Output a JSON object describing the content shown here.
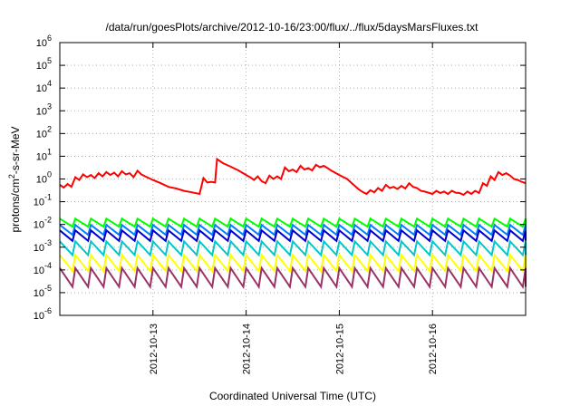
{
  "chart_data": {
    "type": "line",
    "title": "/data/run/goesPlots/archive/2012-10-16/23:00/flux/../flux/5daysMarsFluxes.txt",
    "xlabel": "Coordinated Universal Time (UTC)",
    "ylabel": "protons/cm²-s-sr-MeV",
    "ylabel_parts": {
      "pre": "protons/cm",
      "sup": "2",
      "post": "-s-sr-MeV"
    },
    "yscale": "log",
    "ylim": [
      1e-06,
      1000000.0
    ],
    "y_ticks": [
      {
        "base": "10",
        "exp": "6",
        "value": 1000000.0
      },
      {
        "base": "10",
        "exp": "5",
        "value": 100000.0
      },
      {
        "base": "10",
        "exp": "4",
        "value": 10000.0
      },
      {
        "base": "10",
        "exp": "3",
        "value": 1000.0
      },
      {
        "base": "10",
        "exp": "2",
        "value": 100.0
      },
      {
        "base": "10",
        "exp": "1",
        "value": 10.0
      },
      {
        "base": "10",
        "exp": "0",
        "value": 1.0
      },
      {
        "base": "10",
        "exp": "-1",
        "value": 0.1
      },
      {
        "base": "10",
        "exp": "-2",
        "value": 0.01
      },
      {
        "base": "10",
        "exp": "-3",
        "value": 0.001
      },
      {
        "base": "10",
        "exp": "-4",
        "value": 0.0001
      },
      {
        "base": "10",
        "exp": "-5",
        "value": 1e-05
      },
      {
        "base": "10",
        "exp": "-6",
        "value": 1e-06
      }
    ],
    "xlim": [
      "2012-10-12T00:00",
      "2012-10-17T00:00"
    ],
    "x_ticks": [
      "2012-10-13",
      "2012-10-14",
      "2012-10-15",
      "2012-10-16"
    ],
    "grid": true,
    "series": [
      {
        "color": "#ff0000",
        "x": [
          "2012-10-12T00:00",
          "2012-10-12T01:00",
          "2012-10-12T02:00",
          "2012-10-12T03:00",
          "2012-10-12T04:00",
          "2012-10-12T05:00",
          "2012-10-12T06:00",
          "2012-10-12T07:00",
          "2012-10-12T08:00",
          "2012-10-12T09:00",
          "2012-10-12T10:00",
          "2012-10-12T11:00",
          "2012-10-12T12:00",
          "2012-10-12T13:00",
          "2012-10-12T14:00",
          "2012-10-12T15:00",
          "2012-10-12T16:00",
          "2012-10-12T17:00",
          "2012-10-12T18:00",
          "2012-10-12T19:00",
          "2012-10-12T20:00",
          "2012-10-12T21:00",
          "2012-10-12T22:00",
          "2012-10-13T00:00",
          "2012-10-13T02:00",
          "2012-10-13T04:00",
          "2012-10-13T06:00",
          "2012-10-13T08:00",
          "2012-10-13T10:00",
          "2012-10-13T12:00",
          "2012-10-13T13:00",
          "2012-10-13T14:00",
          "2012-10-13T15:00",
          "2012-10-13T16:00",
          "2012-10-13T16:30",
          "2012-10-13T18:00",
          "2012-10-13T20:00",
          "2012-10-13T22:00",
          "2012-10-14T00:00",
          "2012-10-14T01:00",
          "2012-10-14T02:00",
          "2012-10-14T03:00",
          "2012-10-14T04:00",
          "2012-10-14T05:00",
          "2012-10-14T06:00",
          "2012-10-14T07:00",
          "2012-10-14T08:00",
          "2012-10-14T09:00",
          "2012-10-14T10:00",
          "2012-10-14T11:00",
          "2012-10-14T12:00",
          "2012-10-14T13:00",
          "2012-10-14T14:00",
          "2012-10-14T15:00",
          "2012-10-14T16:00",
          "2012-10-14T17:00",
          "2012-10-14T18:00",
          "2012-10-14T19:00",
          "2012-10-14T20:00",
          "2012-10-14T21:00",
          "2012-10-14T22:00",
          "2012-10-15T00:00",
          "2012-10-15T02:00",
          "2012-10-15T03:00",
          "2012-10-15T04:00",
          "2012-10-15T05:00",
          "2012-10-15T06:00",
          "2012-10-15T07:00",
          "2012-10-15T08:00",
          "2012-10-15T09:00",
          "2012-10-15T10:00",
          "2012-10-15T11:00",
          "2012-10-15T12:00",
          "2012-10-15T13:00",
          "2012-10-15T14:00",
          "2012-10-15T15:00",
          "2012-10-15T16:00",
          "2012-10-15T17:00",
          "2012-10-15T18:00",
          "2012-10-15T19:00",
          "2012-10-15T20:00",
          "2012-10-15T21:00",
          "2012-10-15T22:00",
          "2012-10-16T00:00",
          "2012-10-16T01:00",
          "2012-10-16T02:00",
          "2012-10-16T03:00",
          "2012-10-16T04:00",
          "2012-10-16T05:00",
          "2012-10-16T06:00",
          "2012-10-16T07:00",
          "2012-10-16T08:00",
          "2012-10-16T09:00",
          "2012-10-16T10:00",
          "2012-10-16T11:00",
          "2012-10-16T12:00",
          "2012-10-16T13:00",
          "2012-10-16T14:00",
          "2012-10-16T15:00",
          "2012-10-16T16:00",
          "2012-10-16T17:00",
          "2012-10-16T18:00",
          "2012-10-16T19:00",
          "2012-10-16T20:00",
          "2012-10-16T21:00",
          "2012-10-16T22:00",
          "2012-10-16T23:00",
          "2012-10-17T00:00"
        ],
        "y": [
          0.55,
          0.42,
          0.6,
          0.45,
          1.2,
          0.9,
          1.6,
          1.2,
          1.5,
          1.1,
          1.8,
          1.3,
          2.0,
          1.5,
          1.9,
          1.3,
          2.2,
          1.6,
          1.8,
          1.2,
          2.3,
          1.6,
          1.3,
          0.9,
          0.65,
          0.45,
          0.38,
          0.3,
          0.26,
          0.22,
          1.1,
          0.7,
          0.75,
          0.7,
          7.5,
          5.0,
          3.5,
          2.4,
          1.5,
          1.2,
          0.9,
          1.3,
          0.8,
          0.65,
          1.4,
          1.0,
          1.3,
          1.0,
          3.2,
          2.2,
          2.6,
          2.0,
          3.8,
          2.6,
          3.0,
          2.4,
          4.2,
          3.3,
          3.8,
          3.0,
          2.3,
          1.5,
          1.0,
          0.7,
          0.5,
          0.35,
          0.27,
          0.22,
          0.32,
          0.26,
          0.4,
          0.3,
          0.55,
          0.4,
          0.45,
          0.36,
          0.5,
          0.38,
          0.65,
          0.45,
          0.4,
          0.3,
          0.28,
          0.22,
          0.3,
          0.24,
          0.28,
          0.22,
          0.3,
          0.25,
          0.24,
          0.2,
          0.28,
          0.22,
          0.3,
          0.24,
          0.65,
          0.5,
          1.3,
          0.9,
          2.0,
          1.5,
          1.8,
          1.4,
          1.0,
          0.9,
          0.75,
          0.65
        ]
      },
      {
        "color": "#00ff00",
        "sawtooth": {
          "peak": 0.018,
          "trough": 0.008,
          "period_hours": 4
        }
      },
      {
        "color": "#0080ff",
        "sawtooth": {
          "peak": 0.0095,
          "trough": 0.0035,
          "period_hours": 4
        }
      },
      {
        "color": "#0000cc",
        "sawtooth": {
          "peak": 0.0055,
          "trough": 0.0019,
          "period_hours": 4
        }
      },
      {
        "color": "#00c8c8",
        "sawtooth": {
          "peak": 0.0018,
          "trough": 0.00045,
          "period_hours": 4
        }
      },
      {
        "color": "#ffff00",
        "sawtooth": {
          "peak": 0.00045,
          "trough": 9e-05,
          "period_hours": 4
        }
      },
      {
        "color": "#993366",
        "sawtooth": {
          "peak": 0.00012,
          "trough": 1.8e-05,
          "period_hours": 4
        }
      }
    ]
  }
}
